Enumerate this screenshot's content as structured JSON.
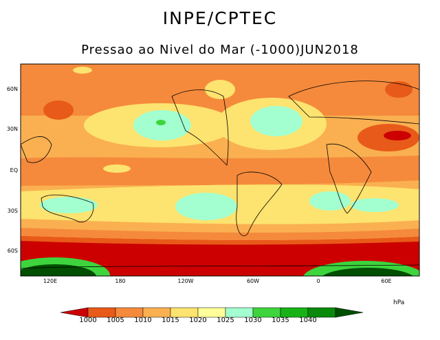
{
  "header": {
    "title": "INPE/CPTEC",
    "subtitle": "Pressao ao Nivel do Mar (-1000)JUN2018"
  },
  "axes": {
    "lat_labels": [
      "60N",
      "30N",
      "EQ",
      "30S",
      "60S"
    ],
    "lon_labels": [
      "120E",
      "180",
      "120W",
      "60W",
      "0",
      "60E"
    ]
  },
  "colorbar": {
    "units": "hPa",
    "levels": [
      "1000",
      "1005",
      "1010",
      "1015",
      "1020",
      "1025",
      "1030",
      "1035",
      "1040"
    ],
    "colors": [
      "#cc0000",
      "#e85a19",
      "#f58a3c",
      "#fab050",
      "#fde36f",
      "#fffe9a",
      "#a3ffcf",
      "#3dd43d",
      "#18b218",
      "#0a8a0a",
      "#004e00"
    ]
  },
  "chart_data": {
    "type": "contour-map",
    "title": "Pressao ao Nivel do Mar (-1000)JUN2018",
    "variable": "Mean sea level pressure anomaly (-1000)",
    "units": "hPa",
    "period": "JUN2018",
    "contour_levels": [
      1000,
      1005,
      1010,
      1015,
      1020,
      1025,
      1030,
      1035,
      1040
    ],
    "lat_range": [
      -80,
      80
    ],
    "lon_range": [
      60,
      420
    ]
  }
}
